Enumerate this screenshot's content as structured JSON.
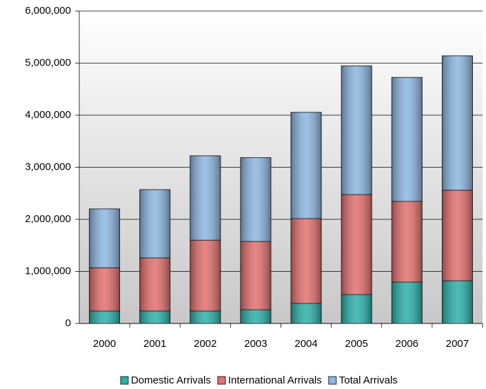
{
  "chart_data": {
    "type": "stacked_bar",
    "categories": [
      "2000",
      "2001",
      "2002",
      "2003",
      "2004",
      "2005",
      "2006",
      "2007"
    ],
    "series": [
      {
        "name": "Domestic Arrivals",
        "color": "#2bb0a8",
        "values": [
          240000,
          240000,
          240000,
          265000,
          385000,
          556000,
          795000,
          820000
        ]
      },
      {
        "name": "International Arrivals",
        "color": "#e2706e",
        "values": [
          830000,
          1020000,
          1360000,
          1310000,
          1630000,
          1920000,
          1550000,
          1740000
        ]
      },
      {
        "name": "Total Arrivals",
        "color": "#8db6e2",
        "values": [
          1130000,
          1310000,
          1620000,
          1610000,
          2040000,
          2470000,
          2380000,
          2580000
        ]
      }
    ],
    "ylim": [
      0,
      6000000
    ],
    "yticks": [
      0,
      {
        "value": 1000000,
        "label": "1,000,000"
      },
      {
        "value": 2000000,
        "label": "2,000,000"
      },
      {
        "value": 3000000,
        "label": "3,000,000"
      },
      {
        "value": 4000000,
        "label": "4,000,000"
      },
      {
        "value": 5000000,
        "label": "5,000,000"
      },
      {
        "value": 6000000,
        "label": "6,000,000"
      }
    ],
    "grid": true
  }
}
